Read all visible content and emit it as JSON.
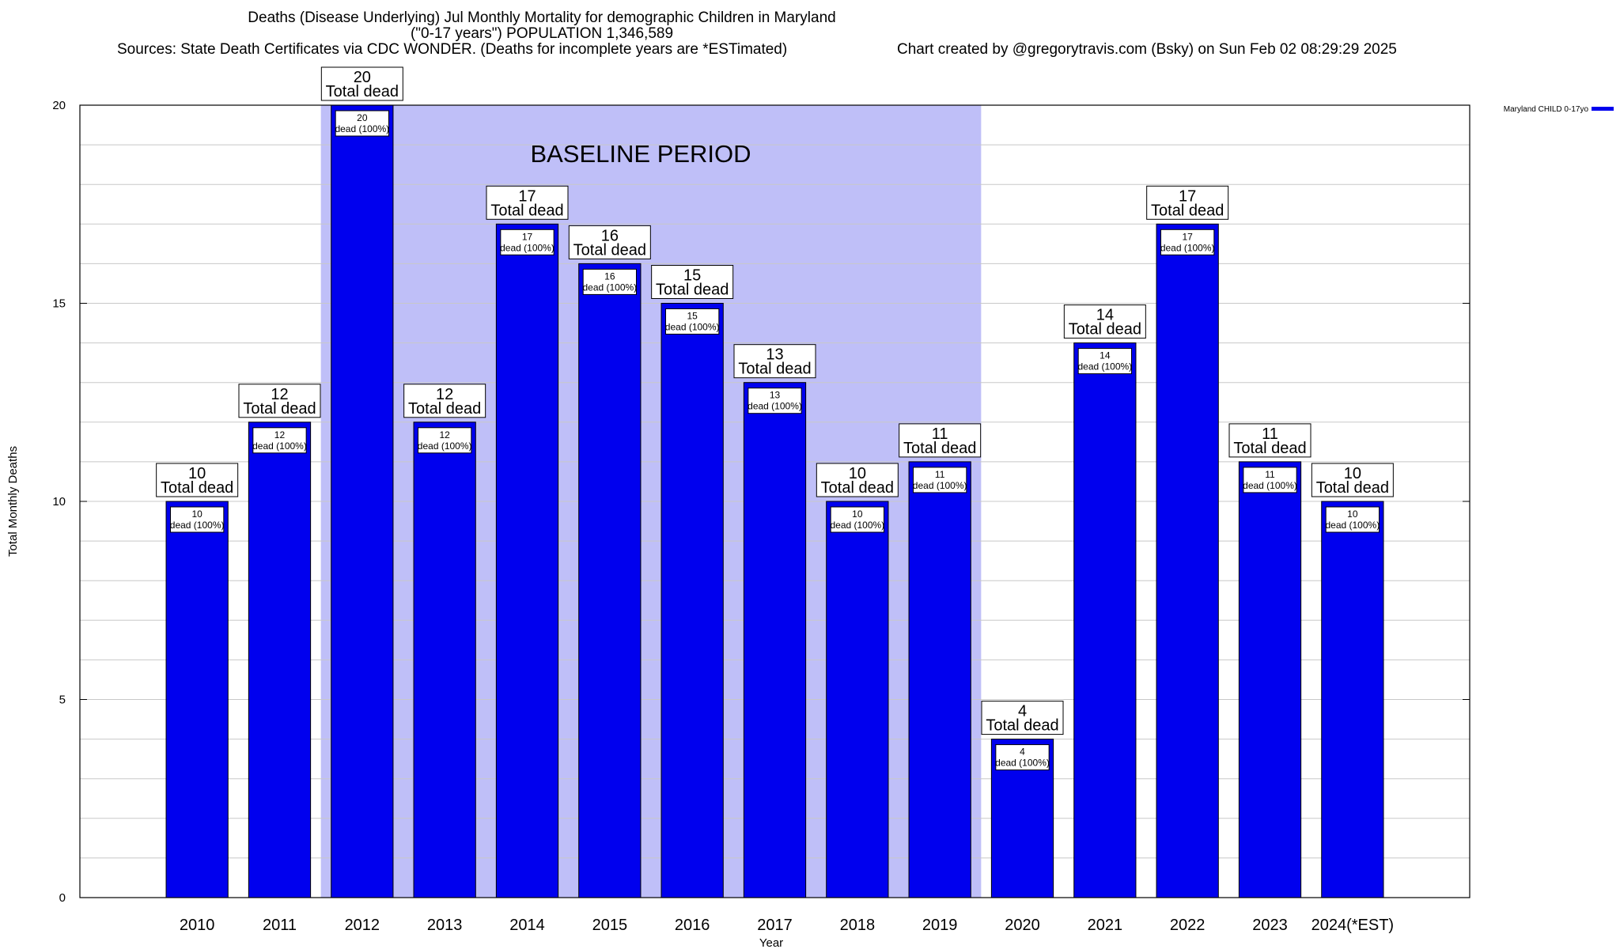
{
  "header": {
    "title_line1": "Deaths (Disease Underlying) Jul Monthly Mortality for demographic Children in Maryland",
    "title_line2": "(\"0-17 years\") POPULATION 1,346,589",
    "sources": "Sources: State Death Certificates via CDC WONDER. (Deaths for incomplete years are *ESTimated)",
    "credit": "Chart created by @gregorytravis.com (Bsky) on Sun Feb 02 08:29:29 2025"
  },
  "chart_data": {
    "type": "bar",
    "xlabel": "Year",
    "ylabel": "Total Monthly Deaths",
    "ylim": [
      0,
      20
    ],
    "yticks": [
      0,
      5,
      10,
      15,
      20
    ],
    "grid": true,
    "categories": [
      "2010",
      "2011",
      "2012",
      "2013",
      "2014",
      "2015",
      "2016",
      "2017",
      "2018",
      "2019",
      "2020",
      "2021",
      "2022",
      "2023",
      "2024(*EST)"
    ],
    "series": [
      {
        "name": "Maryland CHILD 0-17yo",
        "color": "#0000ee",
        "values": [
          10,
          12,
          20,
          12,
          17,
          16,
          15,
          13,
          10,
          11,
          4,
          14,
          17,
          11,
          10
        ]
      }
    ],
    "total_label_text": "Total dead",
    "inner_label_text": "dead (100%)",
    "baseline": {
      "label": "BASELINE PERIOD",
      "from": "2012",
      "to": "2019",
      "color": "#bfbff8"
    },
    "legend_position": "top-right"
  }
}
